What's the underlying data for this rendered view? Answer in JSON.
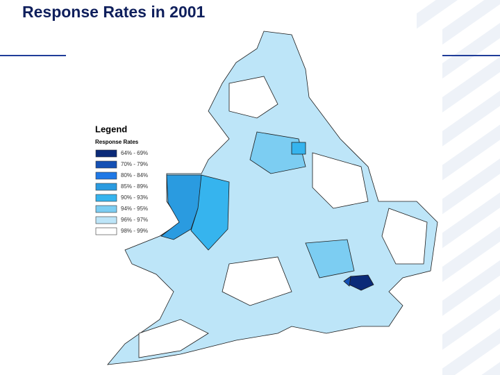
{
  "title": "Response Rates in 2001",
  "legend": {
    "title": "Legend",
    "heading": "Response Rates",
    "items": [
      {
        "label": "64% - 69%",
        "color": "#0b2a78"
      },
      {
        "label": "70% - 79%",
        "color": "#1450b4"
      },
      {
        "label": "80% - 84%",
        "color": "#1e78e6"
      },
      {
        "label": "85% - 89%",
        "color": "#2a9be0"
      },
      {
        "label": "90% - 93%",
        "color": "#36b4ee"
      },
      {
        "label": "94% - 95%",
        "color": "#7ccdf2"
      },
      {
        "label": "96% - 97%",
        "color": "#bde5f8"
      },
      {
        "label": "98% - 99%",
        "color": "#ffffff"
      }
    ]
  }
}
